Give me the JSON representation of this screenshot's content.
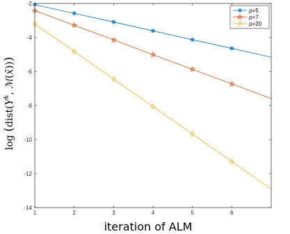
{
  "chart_data": {
    "type": "line",
    "xlabel": "iteration of ALM",
    "ylabel": "log (dist(Y^k, M(x̄)))",
    "xlim": [
      1,
      7
    ],
    "ylim": [
      -14,
      -2
    ],
    "xticks": [
      "1",
      "2",
      "3",
      "4",
      "5",
      "6"
    ],
    "yticks": [
      "-2",
      "-4",
      "-6",
      "-8",
      "-10",
      "-12",
      "-14"
    ],
    "grid": false,
    "legend_position": "top-right",
    "series": [
      {
        "name": "ρ=5",
        "color": "#0072BD",
        "marker": "asterisk",
        "x": [
          1,
          2,
          3,
          4,
          5,
          6,
          7
        ],
        "y": [
          -2.07,
          -2.58,
          -3.09,
          -3.61,
          -4.13,
          -4.64,
          -5.16
        ]
      },
      {
        "name": "ρ=7",
        "color": "#D95319",
        "marker": "pentagram",
        "x": [
          1,
          2,
          3,
          4,
          5,
          6,
          7
        ],
        "y": [
          -2.42,
          -3.28,
          -4.14,
          -5.01,
          -5.87,
          -6.73,
          -7.59
        ]
      },
      {
        "name": "ρ=20",
        "color": "#EDB120",
        "marker": "diamond",
        "x": [
          1,
          2,
          3,
          4,
          5,
          6,
          7
        ],
        "y": [
          -3.2,
          -4.82,
          -6.44,
          -8.06,
          -9.67,
          -11.29,
          -12.91
        ]
      }
    ]
  }
}
